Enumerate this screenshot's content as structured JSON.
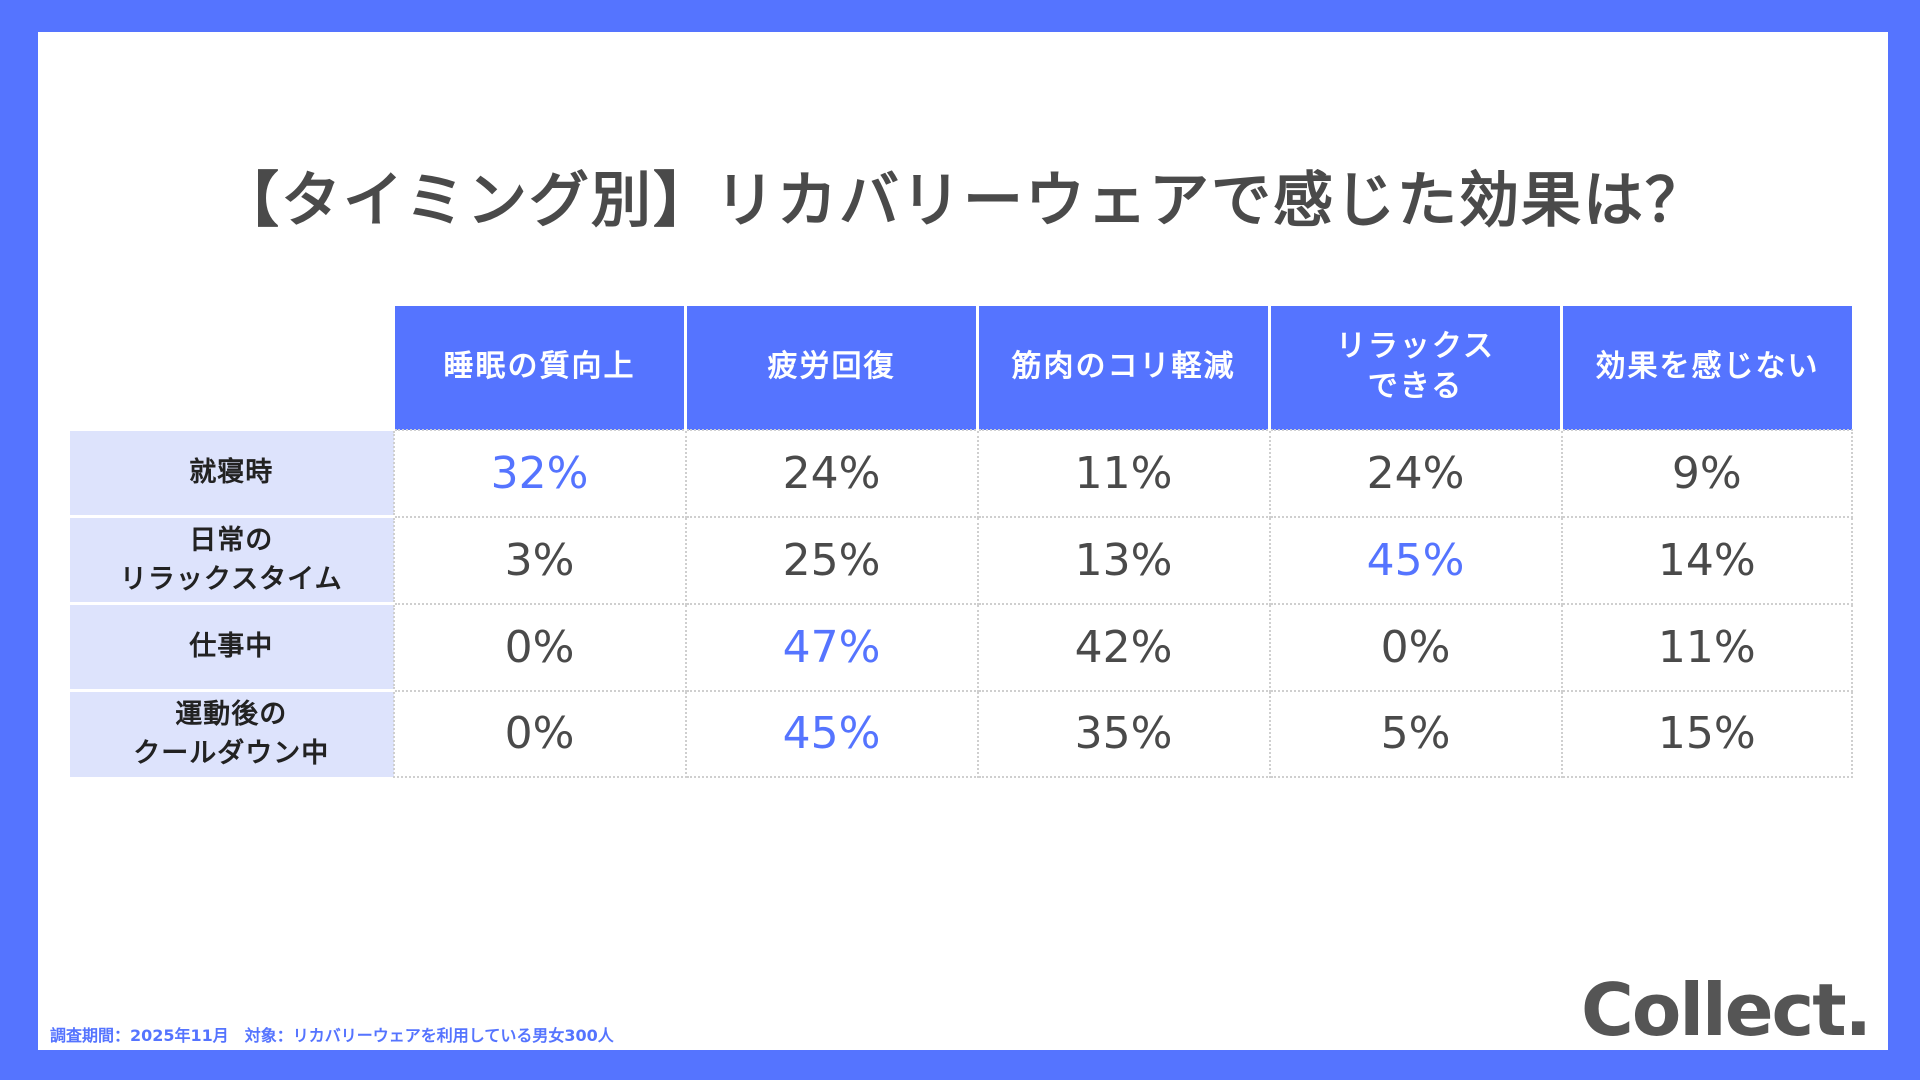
{
  "title": "【タイミング別】リカバリーウェアで感じた効果は？",
  "columns": [
    "睡眠の質向上",
    "疲労回復",
    "筋肉のコリ軽減",
    "リラックス\nできる",
    "効果を感じない"
  ],
  "rows": [
    {
      "label": "就寝時",
      "values": [
        "32%",
        "24%",
        "11%",
        "24%",
        "9%"
      ],
      "highlight": 0
    },
    {
      "label": "日常の\nリラックスタイム",
      "values": [
        "3%",
        "25%",
        "13%",
        "45%",
        "14%"
      ],
      "highlight": 3
    },
    {
      "label": "仕事中",
      "values": [
        "0%",
        "47%",
        "42%",
        "0%",
        "11%"
      ],
      "highlight": 1
    },
    {
      "label": "運動後の\nクールダウン中",
      "values": [
        "0%",
        "45%",
        "35%",
        "5%",
        "15%"
      ],
      "highlight": 1
    }
  ],
  "footnote": "調査期間：2025年11月　対象：リカバリーウェアを利用している男女300人",
  "logo": "Collect.",
  "colors": {
    "accent": "#5574ff",
    "label_bg": "#dde3fc"
  }
}
